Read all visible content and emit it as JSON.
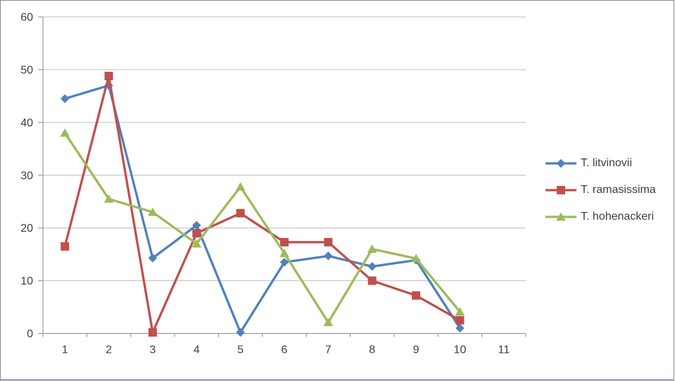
{
  "chart_data": {
    "type": "line",
    "title": "",
    "xlabel": "",
    "ylabel": "",
    "x_tick_labels": [
      "1",
      "2",
      "3",
      "4",
      "5",
      "6",
      "7",
      "8",
      "9",
      "10",
      "11"
    ],
    "y_ticks": [
      0,
      10,
      20,
      30,
      40,
      50,
      60
    ],
    "ylim": [
      0,
      60
    ],
    "grid": "horizontal",
    "legend_position": "right",
    "series": [
      {
        "name": "T. litvinovii",
        "color": "#4f81bd",
        "marker": "diamond",
        "values": [
          44.5,
          47.0,
          14.3,
          20.5,
          0.2,
          13.5,
          14.7,
          12.7,
          13.9,
          1.0
        ]
      },
      {
        "name": "T. ramasissima",
        "color": "#c0504d",
        "marker": "square",
        "values": [
          16.5,
          48.8,
          0.2,
          19.0,
          22.8,
          17.3,
          17.3,
          10.0,
          7.2,
          2.5
        ]
      },
      {
        "name": "T. hohenackeri",
        "color": "#9bbb59",
        "marker": "triangle",
        "values": [
          38.0,
          25.5,
          23.0,
          17.0,
          27.8,
          15.2,
          2.1,
          16.0,
          14.2,
          4.1
        ]
      }
    ],
    "axis_color": "#9b9b9b",
    "gridline_color": "#c6c6c6",
    "text_color": "#3f3f3f"
  }
}
